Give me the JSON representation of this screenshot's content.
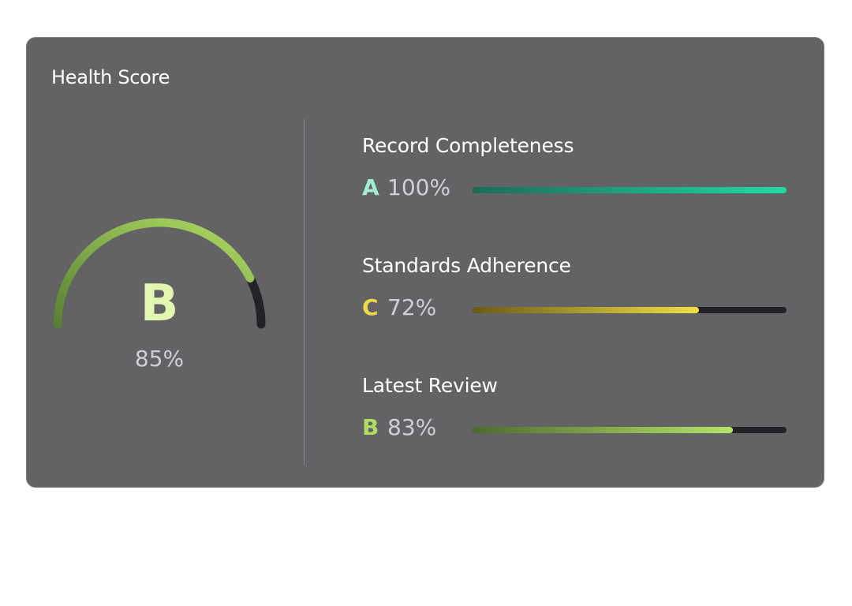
{
  "card": {
    "title": "Health Score"
  },
  "overall": {
    "grade": "B",
    "percent_label": "85%",
    "value": 85,
    "color": "#e2f7b0",
    "gradient": [
      "#5a7f35",
      "#b0dc64"
    ]
  },
  "metrics": [
    {
      "label": "Record Completeness",
      "grade": "A",
      "percent_label": "100%",
      "value": 100,
      "grade_color": "#a2ecd1",
      "gradient": [
        "#1d6b55",
        "#1fdca2"
      ]
    },
    {
      "label": "Standards Adherence",
      "grade": "C",
      "percent_label": "72%",
      "value": 72,
      "grade_color": "#f0d946",
      "gradient": [
        "#6b5a16",
        "#f3e046"
      ]
    },
    {
      "label": "Latest Review",
      "grade": "B",
      "percent_label": "83%",
      "value": 83,
      "grade_color": "#b0dc64",
      "gradient": [
        "#4e6a2e",
        "#b6e46a"
      ]
    }
  ]
}
